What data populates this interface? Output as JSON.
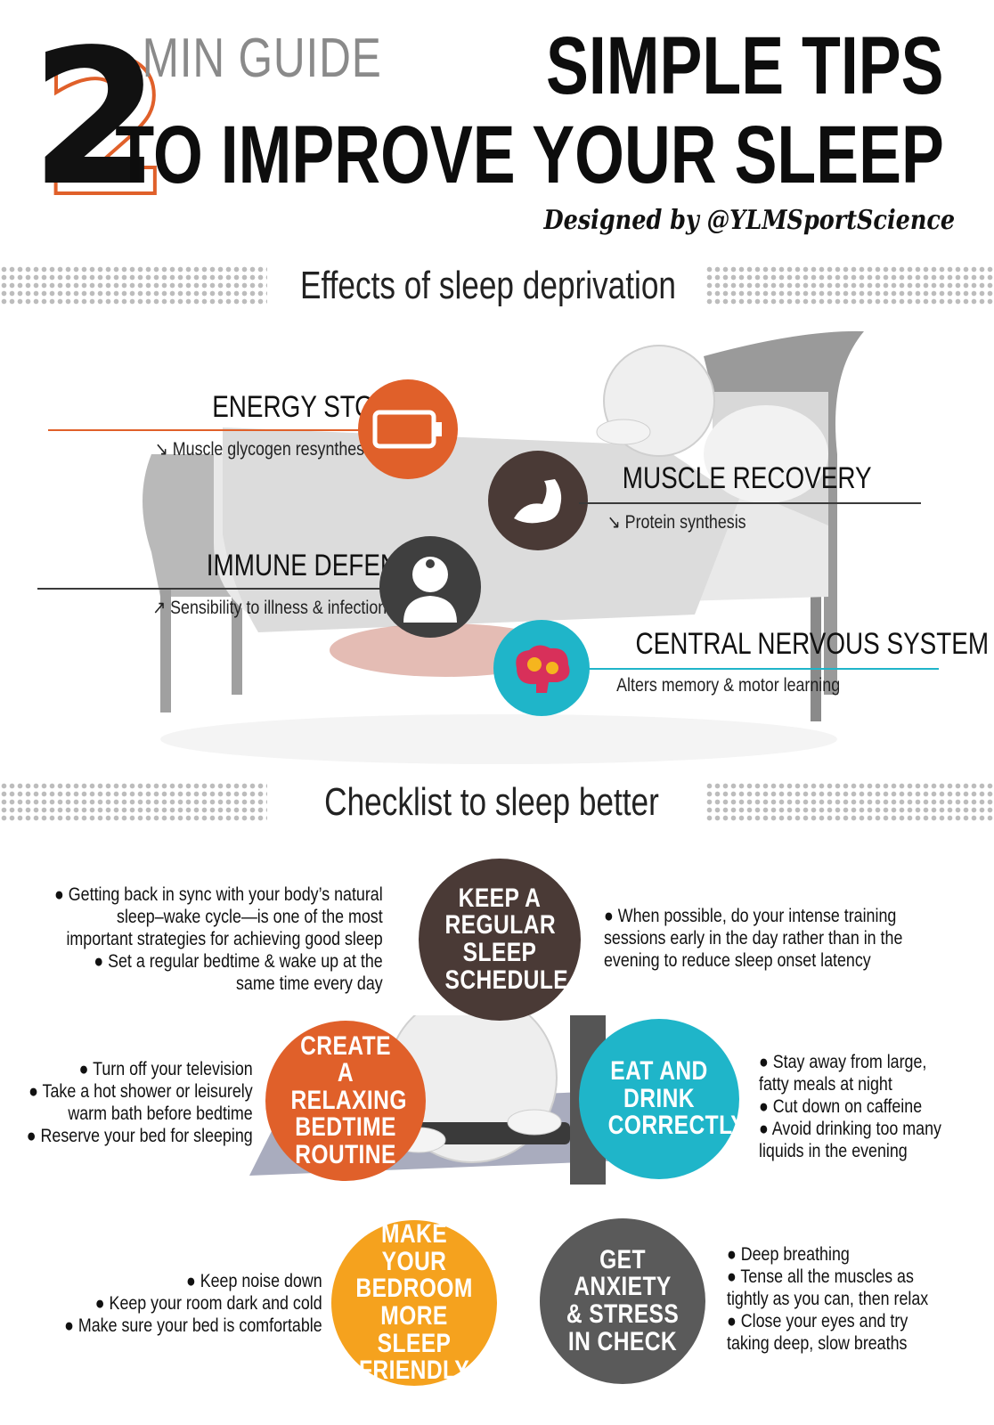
{
  "header": {
    "number": "2",
    "min_guide": "MIN GUIDE",
    "title_line1": "SIMPLE TIPS",
    "title_line2": "TO IMPROVE YOUR SLEEP",
    "designed_by": "Designed by @YLMSportScience"
  },
  "effects": {
    "title": "Effects of sleep deprivation",
    "items": [
      {
        "heading": "ENERGY STORE",
        "detail": "↘ Muscle glycogen resynthesis",
        "icon": "battery-icon",
        "color": "#e0602a"
      },
      {
        "heading": "MUSCLE RECOVERY",
        "detail": "↘ Protein synthesis",
        "icon": "muscle-arm-icon",
        "color": "#4a3a36"
      },
      {
        "heading": "IMMUNE DEFENSES",
        "detail": "↗ Sensibility to illness & infection",
        "icon": "doctor-icon",
        "color": "#3f3f3f"
      },
      {
        "heading": "CENTRAL NERVOUS SYSTEM",
        "detail": "Alters memory & motor learning",
        "icon": "brain-gears-icon",
        "color": "#1fb5c9"
      }
    ]
  },
  "checklist": {
    "title": "Checklist to sleep better",
    "items": [
      {
        "label": "KEEP A REGULAR SLEEP SCHEDULE",
        "color": "#4a3a36",
        "tips_left": [
          "● Getting back in sync with your body’s natural",
          "sleep–wake cycle—is one of the most",
          "important strategies for achieving good sleep",
          "● Set a regular bedtime & wake up at the",
          "same time every day"
        ],
        "tips_right": [
          "● When possible, do your intense training",
          "sessions early in the day rather than in the",
          "evening to reduce sleep onset latency"
        ]
      },
      {
        "label": "CREATE A RELAXING BEDTIME ROUTINE",
        "color": "#e0602a",
        "tips": [
          "● Turn off your television",
          "● Take a hot shower or leisurely",
          "warm bath before bedtime",
          "● Reserve your bed for sleeping"
        ]
      },
      {
        "label": "EAT AND DRINK CORRECTLY",
        "color": "#1fb5c9",
        "tips": [
          "● Stay away from large,",
          "fatty meals at night",
          "● Cut down on caffeine",
          "● Avoid drinking too many",
          "liquids in the evening"
        ]
      },
      {
        "label": "MAKE YOUR BEDROOM MORE SLEEP FRIENDLY",
        "color": "#f5a21e",
        "tips": [
          "● Keep noise down",
          "● Keep your room dark and cold",
          "● Make sure your bed is comfortable"
        ]
      },
      {
        "label": "GET ANXIETY & STRESS IN CHECK",
        "color": "#5a5a5a",
        "tips": [
          "● Deep breathing",
          "● Tense all the muscles as",
          "tightly as you can, then relax",
          "● Close your eyes and try",
          "taking deep, slow breaths"
        ]
      }
    ]
  }
}
